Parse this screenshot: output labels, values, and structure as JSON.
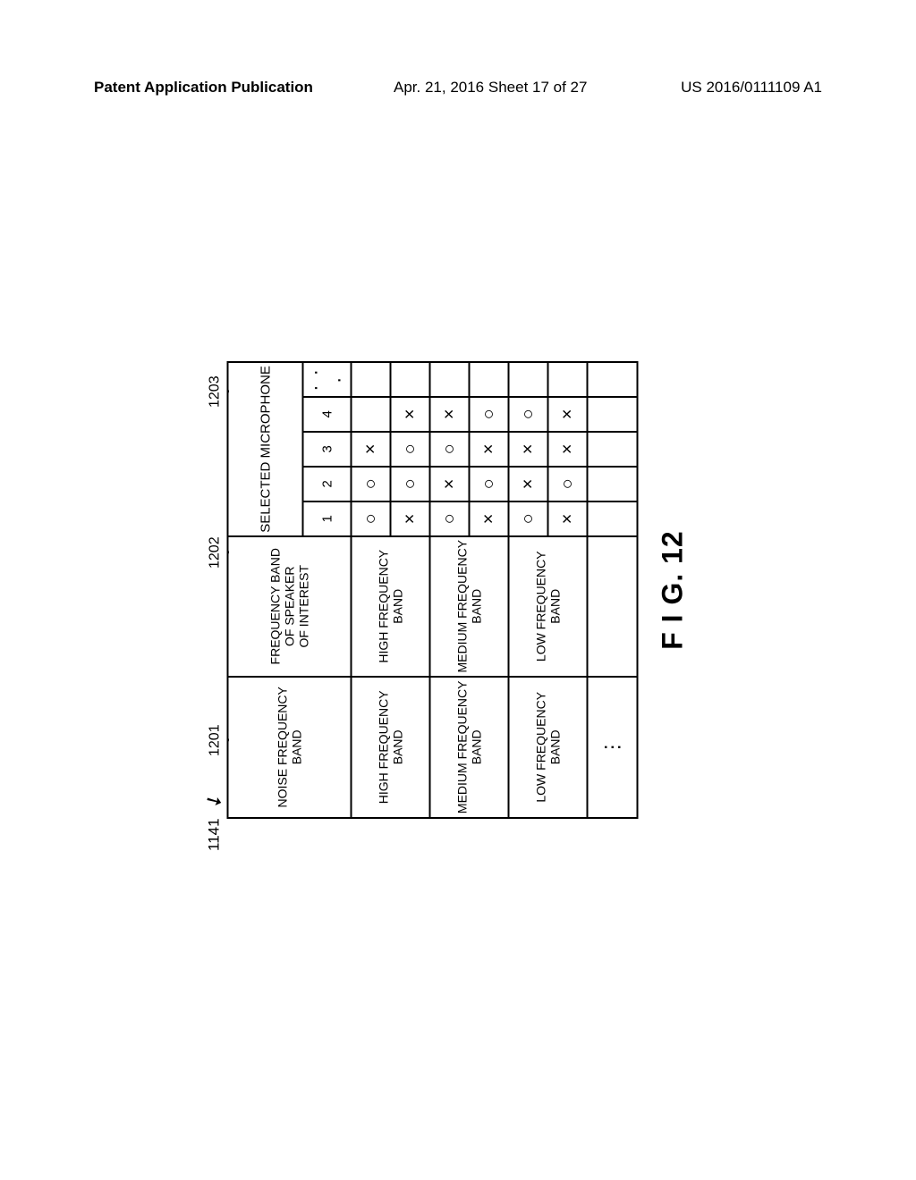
{
  "header": {
    "left": "Patent Application Publication",
    "mid": "Apr. 21, 2016  Sheet 17 of 27",
    "right": "US 2016/0111109 A1"
  },
  "figure": {
    "table_id": "1141",
    "col_labels": {
      "c1201": "1201",
      "c1202": "1202",
      "c1203": "1203"
    },
    "headers": {
      "noise_band": "NOISE FREQUENCY\nBAND",
      "freq_interest": "FREQUENCY BAND\nOF SPEAKER\nOF INTEREST",
      "selected_mic": "SELECTED MICROPHONE",
      "mic_nums": [
        "1",
        "2",
        "3",
        "4",
        "· · ·"
      ]
    },
    "rows": [
      {
        "noise": "HIGH FREQUENCY\nBAND",
        "sub": [
          {
            "freq": "HIGH FREQUENCY\nBAND",
            "mics": [
              "○",
              "○",
              "×",
              "",
              ""
            ]
          },
          {
            "freq": "",
            "mics": [
              "×",
              "○",
              "○",
              "×",
              ""
            ]
          }
        ]
      },
      {
        "noise": "MEDIUM FREQUENCY\nBAND",
        "sub": [
          {
            "freq": "MEDIUM FREQUENCY\nBAND",
            "mics": [
              "○",
              "×",
              "○",
              "×",
              ""
            ]
          },
          {
            "freq": "",
            "mics": [
              "×",
              "○",
              "×",
              "○",
              ""
            ]
          }
        ]
      },
      {
        "noise": "LOW FREQUENCY\nBAND",
        "sub": [
          {
            "freq": "LOW FREQUENCY\nBAND",
            "mics": [
              "○",
              "×",
              "×",
              "○",
              ""
            ]
          },
          {
            "freq": "",
            "mics": [
              "×",
              "○",
              "×",
              "×",
              ""
            ]
          }
        ]
      }
    ],
    "omit_row": {
      "noise": "⋮",
      "rest_empty": true
    },
    "caption": "F I G.   12"
  },
  "style": {
    "background": "#ffffff",
    "border_color": "#000000",
    "font_family": "Arial",
    "caption_fontsize": 32,
    "header_fontsize": 17,
    "cell_fontsize": 15
  }
}
